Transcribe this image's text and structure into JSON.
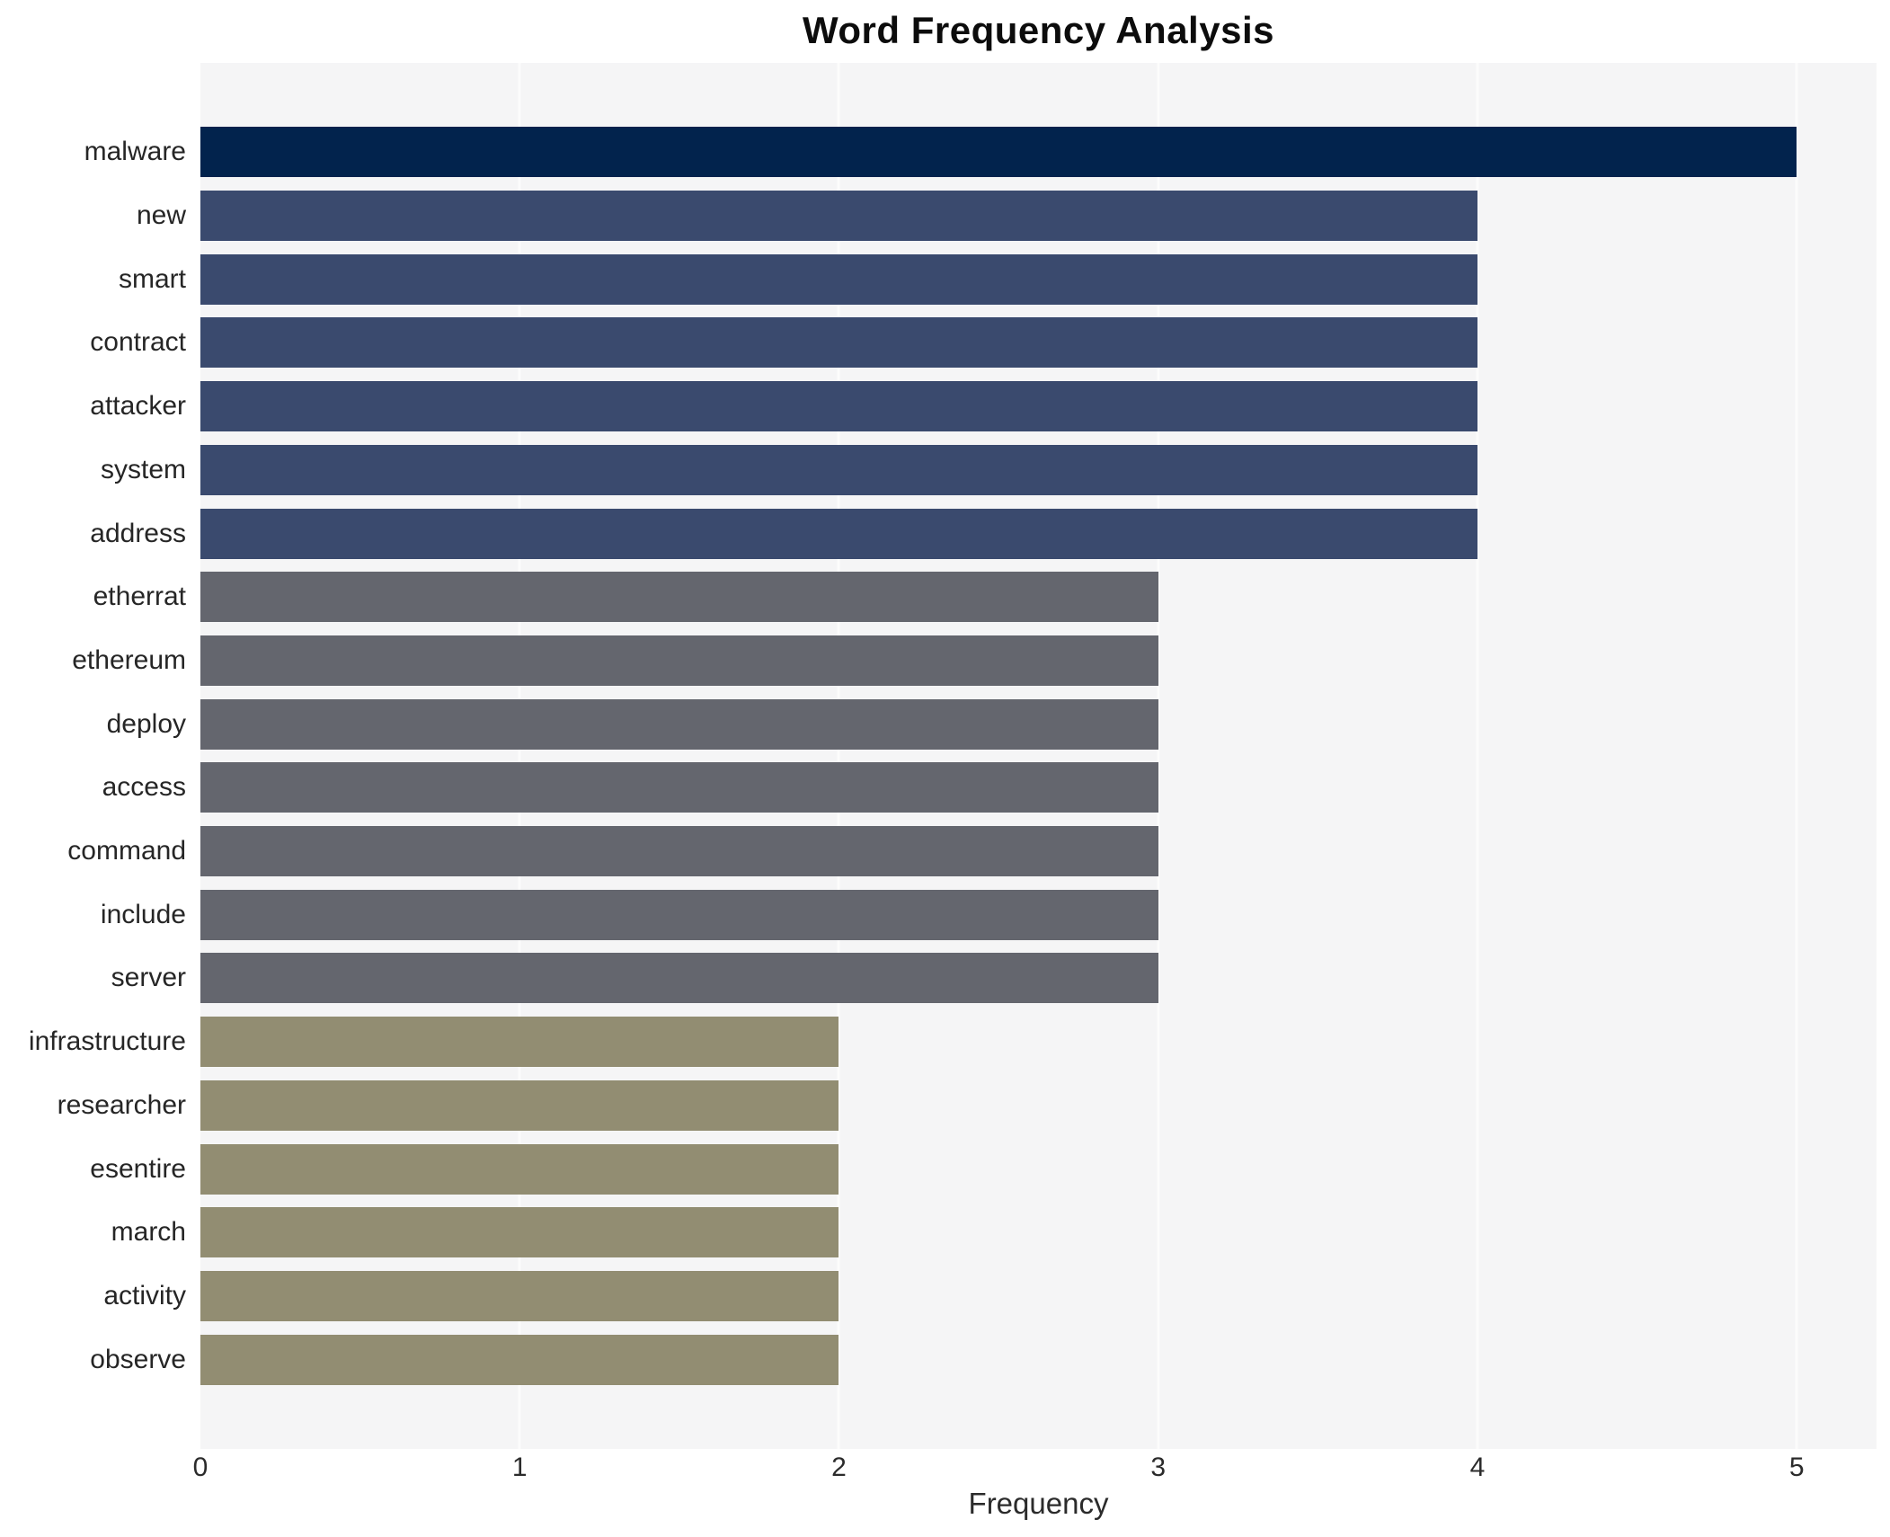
{
  "chart_data": {
    "type": "bar",
    "orientation": "horizontal",
    "title": "Word Frequency Analysis",
    "xlabel": "Frequency",
    "ylabel": "",
    "categories": [
      "malware",
      "new",
      "smart",
      "contract",
      "attacker",
      "system",
      "address",
      "etherrat",
      "ethereum",
      "deploy",
      "access",
      "command",
      "include",
      "server",
      "infrastructure",
      "researcher",
      "esentire",
      "march",
      "activity",
      "observe"
    ],
    "values": [
      5,
      4,
      4,
      4,
      4,
      4,
      4,
      3,
      3,
      3,
      3,
      3,
      3,
      3,
      2,
      2,
      2,
      2,
      2,
      2
    ],
    "colors": [
      "#02234d",
      "#3a4a6e",
      "#3a4a6e",
      "#3a4a6e",
      "#3a4a6e",
      "#3a4a6e",
      "#3a4a6e",
      "#64666e",
      "#64666e",
      "#64666e",
      "#64666e",
      "#64666e",
      "#64666e",
      "#64666e",
      "#928d72",
      "#928d72",
      "#928d72",
      "#928d72",
      "#928d72",
      "#928d72"
    ],
    "palette_by_value": {
      "5": "#02234d",
      "4": "#3a4a6e",
      "3": "#64666e",
      "2": "#928d72"
    },
    "xlim": [
      0,
      5.25
    ],
    "xticks": [
      0,
      1,
      2,
      3,
      4,
      5
    ],
    "grid": "vertical gridlines at integer ticks",
    "gridline_color": "#fcfcfc",
    "plot_background": "#f5f5f6",
    "figure_background": "#ffffff",
    "legend": null
  }
}
